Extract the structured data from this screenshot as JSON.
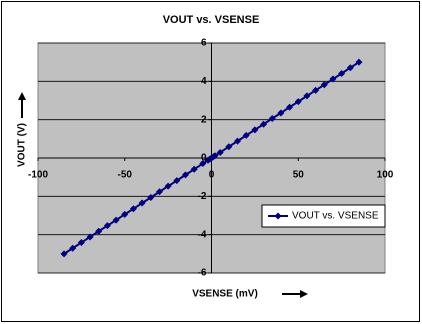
{
  "chart_data": {
    "type": "line",
    "title": "VOUT vs. VSENSE",
    "x_label": "VSENSE (mV)",
    "y_label": "VOUT (V)",
    "x": [
      -85,
      -80,
      -75,
      -70,
      -65,
      -60,
      -55,
      -50,
      -45,
      -40,
      -35,
      -30,
      -25,
      -20,
      -15,
      -10,
      -5,
      -2,
      -1,
      0,
      1,
      2,
      5,
      10,
      15,
      20,
      25,
      30,
      35,
      40,
      45,
      50,
      55,
      60,
      65,
      70,
      75,
      80,
      85
    ],
    "series": [
      {
        "name": "VOUT vs. VSENSE",
        "color": "#000080",
        "values": [
          -5,
          -4.71,
          -4.41,
          -4.12,
          -3.82,
          -3.53,
          -3.24,
          -2.94,
          -2.65,
          -2.35,
          -2.06,
          -1.76,
          -1.47,
          -1.18,
          -0.88,
          -0.59,
          -0.29,
          -0.12,
          -0.06,
          0,
          0.06,
          0.12,
          0.29,
          0.59,
          0.88,
          1.18,
          1.47,
          1.76,
          2.06,
          2.35,
          2.65,
          2.94,
          3.24,
          3.53,
          3.82,
          4.12,
          4.41,
          4.71,
          5
        ]
      }
    ],
    "xlim": [
      -100,
      100
    ],
    "xticks": [
      -100,
      -50,
      0,
      50,
      100
    ],
    "ylim": [
      -6,
      6
    ],
    "yticks": [
      -6,
      -4,
      -2,
      0,
      2,
      4,
      6
    ],
    "grid": true,
    "plot_background": "#c0c0c0",
    "legend": "lower-right"
  }
}
